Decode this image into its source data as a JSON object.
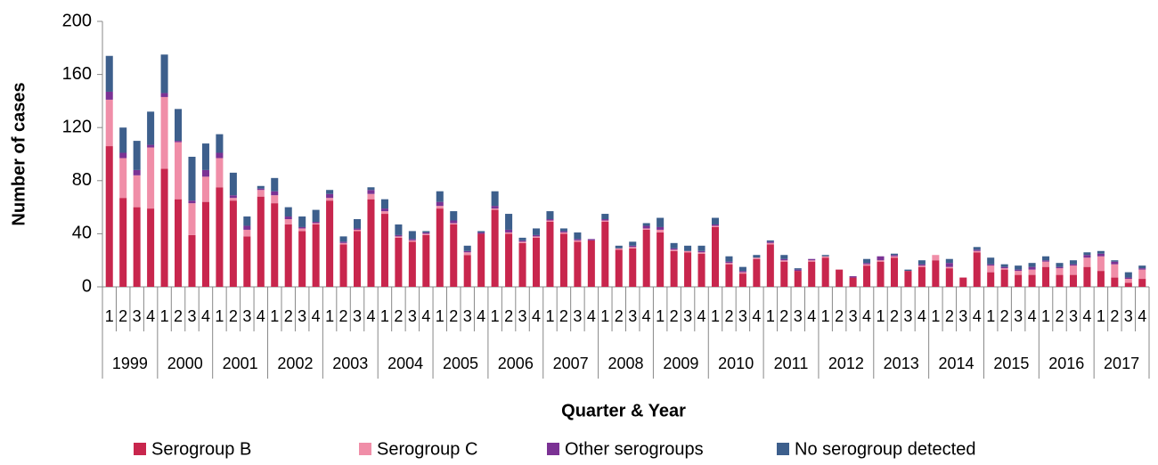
{
  "chart_data": {
    "type": "stacked_bar",
    "x_label": "Quarter & Year",
    "y_label": "Number of cases",
    "categories": [
      "1",
      "2",
      "3",
      "4",
      "1",
      "2",
      "3",
      "4",
      "1",
      "2",
      "3",
      "4",
      "1",
      "2",
      "3",
      "4",
      "1",
      "2",
      "3",
      "4",
      "1",
      "2",
      "3",
      "4",
      "1",
      "2",
      "3",
      "4",
      "1",
      "2",
      "3",
      "4",
      "1",
      "2",
      "3",
      "4",
      "1",
      "2",
      "3",
      "4",
      "1",
      "2",
      "3",
      "4",
      "1",
      "2",
      "3",
      "4",
      "1",
      "2",
      "3",
      "4",
      "1",
      "2",
      "3",
      "4",
      "1",
      "2",
      "3",
      "4",
      "1",
      "2",
      "3",
      "4",
      "1",
      "2",
      "3",
      "4",
      "1",
      "2",
      "3",
      "4",
      "1",
      "2",
      "3",
      "4"
    ],
    "years": [
      "1999",
      "2000",
      "2001",
      "2002",
      "2003",
      "2004",
      "2005",
      "2006",
      "2007",
      "2008",
      "2009",
      "2010",
      "2011",
      "2012",
      "2013",
      "2014",
      "2015",
      "2016",
      "2017"
    ],
    "ylim": [
      0,
      200
    ],
    "yticks": [
      0,
      40,
      80,
      120,
      160,
      200
    ],
    "legend": "bottom",
    "series": [
      {
        "name": "Serogroup B",
        "color": "#c8264d",
        "values": [
          106,
          67,
          60,
          59,
          89,
          66,
          39,
          64,
          75,
          65,
          38,
          68,
          63,
          47,
          42,
          47,
          65,
          32,
          42,
          66,
          55,
          37,
          34,
          39,
          59,
          47,
          24,
          40,
          58,
          40,
          33,
          37,
          49,
          40,
          34,
          35,
          49,
          28,
          29,
          43,
          41,
          27,
          26,
          25,
          45,
          17,
          10,
          21,
          32,
          19,
          12,
          19,
          22,
          13,
          7,
          16,
          19,
          22,
          12,
          15,
          20,
          14,
          7,
          26,
          11,
          13,
          9,
          9,
          15,
          9,
          9,
          15,
          12,
          7,
          3,
          6
        ]
      },
      {
        "name": "Serogroup C",
        "color": "#f08ea8",
        "values": [
          35,
          30,
          24,
          46,
          54,
          43,
          24,
          19,
          22,
          2,
          5,
          5,
          6,
          4,
          2,
          1,
          2,
          1,
          1,
          4,
          2,
          1,
          1,
          1,
          2,
          1,
          2,
          0,
          1,
          1,
          1,
          1,
          1,
          1,
          1,
          0,
          1,
          1,
          1,
          1,
          2,
          1,
          1,
          1,
          1,
          1,
          1,
          1,
          1,
          1,
          0,
          1,
          1,
          0,
          0,
          1,
          1,
          1,
          0,
          1,
          4,
          1,
          0,
          1,
          5,
          1,
          3,
          4,
          4,
          5,
          7,
          7,
          11,
          10,
          3,
          7
        ]
      },
      {
        "name": "Other serogroups",
        "color": "#7b3294",
        "values": [
          6,
          4,
          4,
          2,
          3,
          1,
          2,
          5,
          4,
          2,
          3,
          1,
          3,
          2,
          1,
          1,
          3,
          1,
          1,
          3,
          2,
          1,
          1,
          1,
          3,
          2,
          1,
          1,
          2,
          2,
          1,
          1,
          1,
          1,
          1,
          1,
          1,
          0,
          1,
          2,
          2,
          1,
          0,
          1,
          1,
          1,
          1,
          0,
          1,
          1,
          1,
          1,
          0,
          0,
          1,
          1,
          3,
          1,
          0,
          1,
          0,
          3,
          0,
          1,
          1,
          1,
          1,
          2,
          1,
          1,
          1,
          2,
          2,
          2,
          1,
          1
        ]
      },
      {
        "name": "No serogroup detected",
        "color": "#3d5f8c",
        "values": [
          27,
          19,
          22,
          25,
          29,
          24,
          33,
          20,
          14,
          17,
          7,
          2,
          10,
          7,
          8,
          9,
          3,
          4,
          7,
          2,
          7,
          8,
          6,
          1,
          8,
          7,
          4,
          1,
          11,
          12,
          2,
          5,
          6,
          2,
          5,
          0,
          4,
          2,
          3,
          2,
          7,
          4,
          4,
          4,
          5,
          4,
          3,
          2,
          1,
          3,
          1,
          0,
          1,
          0,
          0,
          3,
          0,
          1,
          1,
          3,
          0,
          3,
          0,
          2,
          5,
          2,
          3,
          3,
          3,
          3,
          3,
          2,
          2,
          1,
          4,
          2
        ]
      }
    ]
  }
}
